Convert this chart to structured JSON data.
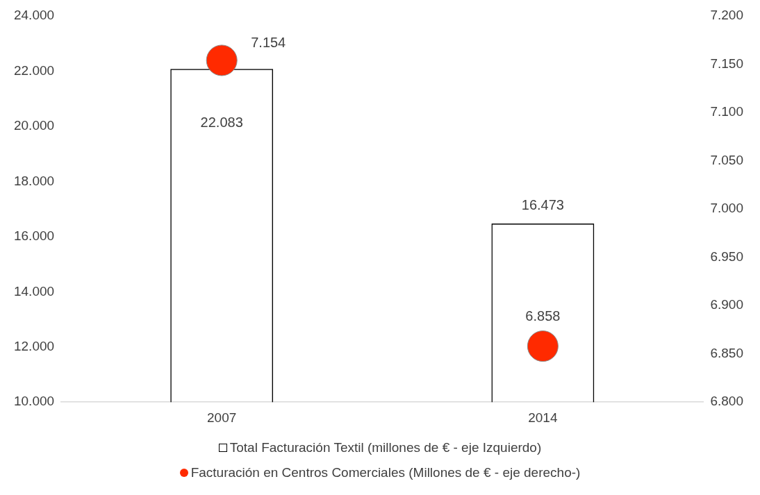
{
  "chart_data": {
    "type": "bar",
    "categories": [
      "2007",
      "2014"
    ],
    "series": [
      {
        "name": "Total Facturación Textil (millones de € - eje Izquierdo)",
        "color": "#000000",
        "values": [
          22083,
          16473
        ],
        "value_labels": [
          "22.083",
          "16.473"
        ]
      },
      {
        "type": "scatter",
        "axis": "y2",
        "name": "Facturación en Centros Comerciales (Millones de € - eje derecho-)",
        "color": "#ff2a00",
        "values": [
          7154,
          6858
        ],
        "value_labels": [
          "7.154",
          "6.858"
        ]
      }
    ],
    "ylim": [
      10000,
      24000
    ],
    "yticks": [
      {
        "value": 10000,
        "label": "10.000"
      },
      {
        "value": 12000,
        "label": "12.000"
      },
      {
        "value": 14000,
        "label": "14.000"
      },
      {
        "value": 16000,
        "label": "16.000"
      },
      {
        "value": 18000,
        "label": "18.000"
      },
      {
        "value": 20000,
        "label": "20.000"
      },
      {
        "value": 22000,
        "label": "22.000"
      },
      {
        "value": 24000,
        "label": "24.000"
      }
    ],
    "y2lim": [
      6800,
      7200
    ],
    "y2ticks": [
      {
        "value": 6800,
        "label": "6.800"
      },
      {
        "value": 6850,
        "label": "6.850"
      },
      {
        "value": 6900,
        "label": "6.900"
      },
      {
        "value": 6950,
        "label": "6.950"
      },
      {
        "value": 7000,
        "label": "7.000"
      },
      {
        "value": 7050,
        "label": "7.050"
      },
      {
        "value": 7100,
        "label": "7.100"
      },
      {
        "value": 7150,
        "label": "7.150"
      },
      {
        "value": 7200,
        "label": "7.200"
      }
    ],
    "grid": false,
    "legend": "bottom",
    "marker": "circle"
  }
}
